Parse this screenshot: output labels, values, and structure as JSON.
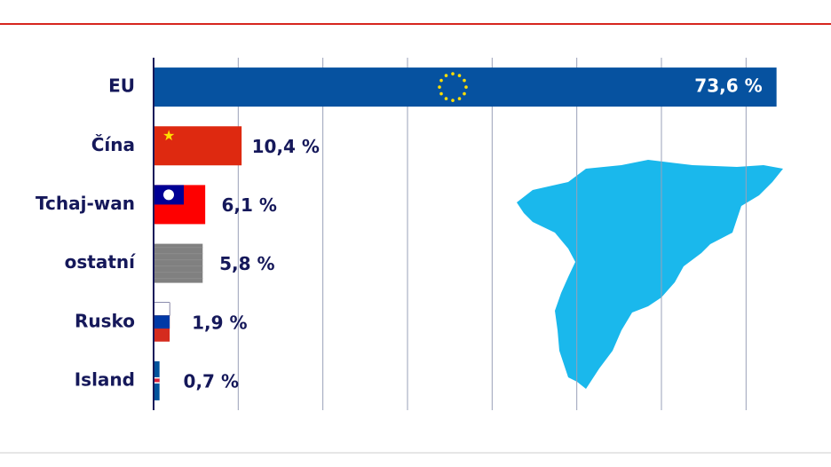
{
  "chart_data": {
    "type": "hbar",
    "categories": [
      "EU",
      "Čína",
      "Tchaj-wan",
      "ostatní",
      "Rusko",
      "Island"
    ],
    "values": [
      73.6,
      10.4,
      6.1,
      5.8,
      1.9,
      0.7
    ],
    "value_labels": [
      "73,6 %",
      "10,4 %",
      "6,1 %",
      "5,8 %",
      "1,9 %",
      "0,7 %"
    ],
    "colors": [
      "#0652a0",
      "#de2910",
      "#fe0000",
      "#808080",
      "#d52b1e",
      "#02529c"
    ],
    "xlim": [
      0,
      75
    ],
    "xticks": [
      10,
      20,
      30,
      40,
      50,
      60,
      70
    ],
    "grid": true
  }
}
